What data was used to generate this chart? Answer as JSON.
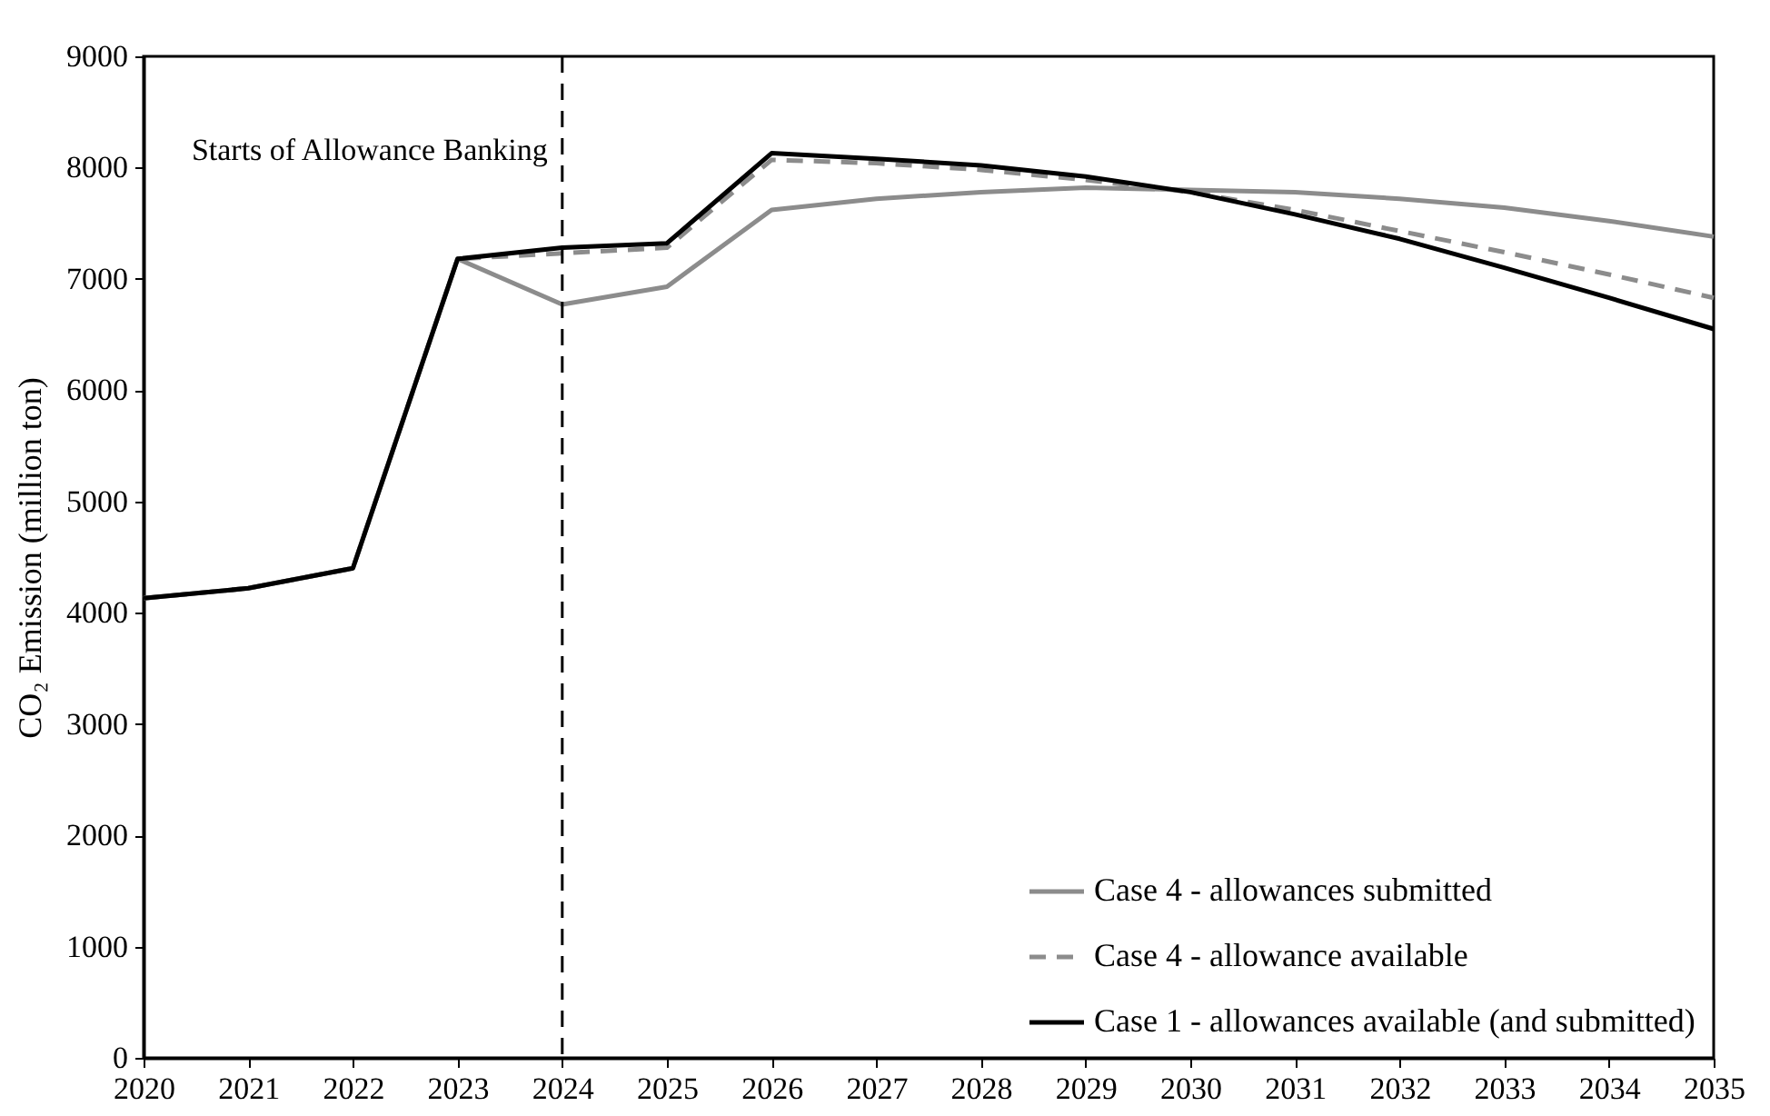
{
  "chart_data": {
    "type": "line",
    "ylabel": "CO₂ Emission (million ton)",
    "categories": [
      "2020",
      "2021",
      "2022",
      "2023",
      "2024",
      "2025",
      "2026",
      "2027",
      "2028",
      "2029",
      "2030",
      "2031",
      "2032",
      "2033",
      "2034",
      "2035"
    ],
    "series": [
      {
        "name": "Case 4 - allowances submitted",
        "color": "#8c8c8c",
        "line_style": "solid",
        "values": [
          4130,
          4220,
          4400,
          7180,
          6770,
          6930,
          7620,
          7720,
          7780,
          7820,
          7800,
          7780,
          7720,
          7640,
          7520,
          7380
        ]
      },
      {
        "name": "Case 4 - allowance available",
        "color": "#8c8c8c",
        "line_style": "dashed",
        "values": [
          4130,
          4220,
          4400,
          7180,
          7230,
          7280,
          8070,
          8040,
          7980,
          7890,
          7780,
          7620,
          7430,
          7240,
          7040,
          6830
        ]
      },
      {
        "name": "Case 1 - allowances available (and submitted)",
        "color": "#000000",
        "line_style": "solid",
        "values": [
          4130,
          4220,
          4400,
          7180,
          7280,
          7320,
          8130,
          8080,
          8020,
          7920,
          7780,
          7580,
          7360,
          7100,
          6830,
          6550
        ]
      }
    ],
    "ylim": [
      0,
      9000
    ],
    "yticks": [
      0,
      1000,
      2000,
      3000,
      4000,
      5000,
      6000,
      7000,
      8000,
      9000
    ],
    "ref_lines": [
      {
        "axis": "x",
        "value": "2024",
        "label": "Starts of Allowance Banking",
        "color": "#000000",
        "line_style": "dashed"
      }
    ],
    "legend": "bottom right",
    "grid": false,
    "marker": "none"
  }
}
